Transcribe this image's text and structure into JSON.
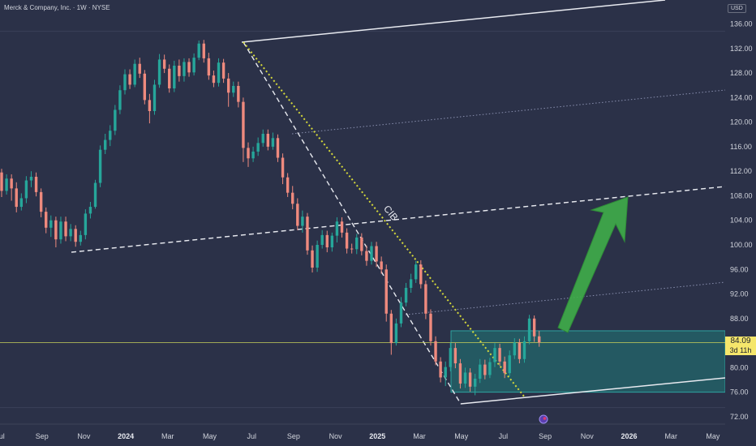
{
  "header": {
    "title": "Merck & Company, Inc. · 1W · NYSE",
    "currency": "USD"
  },
  "chart_data": {
    "type": "candlestick",
    "y_ticks": [
      "136.00",
      "132.00",
      "128.00",
      "124.00",
      "120.00",
      "116.00",
      "112.00",
      "108.00",
      "104.00",
      "100.00",
      "96.00",
      "92.00",
      "88.00",
      "84.00",
      "80.00",
      "76.00",
      "72.00"
    ],
    "ylim": [
      70.8,
      139.9
    ],
    "x_ticks": [
      {
        "label": "Jul",
        "year": false
      },
      {
        "label": "Sep",
        "year": false
      },
      {
        "label": "Nov",
        "year": false
      },
      {
        "label": "2024",
        "year": true
      },
      {
        "label": "Mar",
        "year": false
      },
      {
        "label": "May",
        "year": false
      },
      {
        "label": "Jul",
        "year": false
      },
      {
        "label": "Sep",
        "year": false
      },
      {
        "label": "Nov",
        "year": false
      },
      {
        "label": "2025",
        "year": true
      },
      {
        "label": "Mar",
        "year": false
      },
      {
        "label": "May",
        "year": false
      },
      {
        "label": "Jul",
        "year": false
      },
      {
        "label": "Sep",
        "year": false
      },
      {
        "label": "Nov",
        "year": false
      },
      {
        "label": "2026",
        "year": true
      },
      {
        "label": "Mar",
        "year": false
      },
      {
        "label": "May",
        "year": false
      }
    ],
    "last_price": "84.09",
    "countdown": "3d 11h",
    "annotation": "CIB",
    "colors": {
      "up": "#26a69a",
      "down": "#ef8a7e",
      "zone": "#1f7a78",
      "arrow": "#3fae49",
      "last_price": "#f5e66b"
    },
    "candles": [
      [
        111.8,
        108.8,
        112.4,
        107.8
      ],
      [
        108.8,
        110.8,
        111.5,
        108.2
      ],
      [
        110.8,
        109.2,
        111.5,
        107.2
      ],
      [
        109.2,
        106.2,
        110.2,
        105.3
      ],
      [
        106.2,
        107.6,
        108.4,
        105.6
      ],
      [
        107.6,
        110.5,
        111.2,
        106.8
      ],
      [
        110.5,
        111.1,
        112.0,
        109.4
      ],
      [
        111.1,
        108.6,
        111.8,
        107.9
      ],
      [
        108.6,
        105.4,
        109.2,
        104.5
      ],
      [
        105.4,
        102.8,
        106.1,
        101.9
      ],
      [
        102.8,
        104.0,
        104.8,
        101.3
      ],
      [
        104.0,
        100.9,
        104.6,
        99.6
      ],
      [
        100.9,
        103.8,
        104.6,
        100.2
      ],
      [
        103.8,
        101.4,
        104.6,
        100.6
      ],
      [
        101.4,
        102.6,
        103.4,
        100.6
      ],
      [
        102.6,
        100.5,
        103.2,
        99.7
      ],
      [
        100.5,
        101.6,
        102.3,
        99.9
      ],
      [
        101.6,
        105.1,
        105.8,
        100.9
      ],
      [
        105.1,
        106.2,
        107.0,
        104.3
      ],
      [
        106.2,
        110.1,
        110.6,
        105.9
      ],
      [
        110.1,
        115.5,
        116.2,
        109.4
      ],
      [
        115.5,
        117.1,
        118.1,
        114.8
      ],
      [
        117.1,
        118.6,
        119.5,
        116.1
      ],
      [
        118.6,
        122.0,
        122.8,
        117.9
      ],
      [
        122.0,
        125.2,
        126.0,
        121.3
      ],
      [
        125.2,
        127.8,
        128.6,
        124.5
      ],
      [
        127.8,
        126.1,
        128.6,
        125.4
      ],
      [
        126.1,
        129.5,
        130.2,
        125.7
      ],
      [
        129.5,
        127.9,
        130.5,
        127.2
      ],
      [
        127.9,
        123.6,
        128.5,
        122.9
      ],
      [
        123.6,
        121.8,
        124.6,
        119.8
      ],
      [
        121.8,
        126.1,
        126.9,
        121.2
      ],
      [
        126.1,
        130.2,
        131.1,
        125.6
      ],
      [
        130.2,
        128.7,
        131.0,
        128.0
      ],
      [
        128.7,
        125.5,
        129.4,
        124.8
      ],
      [
        125.5,
        129.2,
        130.0,
        124.9
      ],
      [
        129.2,
        127.5,
        130.2,
        126.6
      ],
      [
        127.5,
        129.8,
        130.4,
        126.6
      ],
      [
        129.8,
        128.1,
        130.4,
        127.4
      ],
      [
        128.1,
        130.5,
        131.2,
        127.6
      ],
      [
        130.5,
        132.8,
        133.3,
        130.1
      ],
      [
        132.8,
        130.4,
        133.4,
        129.7
      ],
      [
        130.4,
        127.6,
        131.3,
        126.9
      ],
      [
        127.6,
        126.4,
        128.4,
        125.7
      ],
      [
        126.4,
        129.7,
        130.4,
        125.8
      ],
      [
        129.7,
        127.1,
        130.3,
        126.4
      ],
      [
        127.1,
        124.8,
        128.0,
        122.5
      ],
      [
        124.8,
        125.9,
        126.6,
        124.1
      ],
      [
        125.9,
        123.3,
        126.6,
        122.4
      ],
      [
        123.3,
        115.8,
        124.0,
        113.5
      ],
      [
        115.8,
        114.1,
        116.7,
        112.7
      ],
      [
        114.1,
        115.2,
        116.0,
        113.5
      ],
      [
        115.2,
        116.6,
        117.5,
        114.5
      ],
      [
        116.6,
        118.1,
        118.8,
        116.0
      ],
      [
        118.1,
        116.0,
        118.8,
        115.4
      ],
      [
        116.0,
        117.4,
        118.3,
        115.5
      ],
      [
        117.4,
        114.2,
        118.0,
        113.5
      ],
      [
        114.2,
        111.0,
        114.9,
        109.9
      ],
      [
        111.0,
        108.5,
        111.7,
        107.8
      ],
      [
        108.5,
        106.7,
        109.6,
        105.8
      ],
      [
        106.7,
        103.1,
        107.6,
        102.4
      ],
      [
        103.1,
        104.6,
        105.6,
        102.0
      ],
      [
        104.6,
        99.1,
        105.2,
        98.4
      ],
      [
        99.1,
        96.3,
        99.9,
        95.5
      ],
      [
        96.3,
        100.0,
        100.7,
        95.6
      ],
      [
        100.0,
        101.6,
        102.4,
        99.4
      ],
      [
        101.6,
        99.6,
        102.3,
        98.8
      ],
      [
        99.6,
        101.5,
        102.0,
        98.9
      ],
      [
        101.5,
        103.8,
        104.5,
        100.4
      ],
      [
        103.8,
        102.0,
        104.5,
        101.2
      ],
      [
        102.0,
        99.4,
        102.7,
        98.6
      ],
      [
        99.4,
        99.3,
        100.2,
        98.6
      ],
      [
        99.3,
        101.2,
        101.8,
        98.5
      ],
      [
        101.2,
        99.0,
        101.9,
        98.3
      ],
      [
        99.0,
        97.4,
        99.9,
        96.6
      ],
      [
        97.4,
        99.8,
        100.5,
        96.8
      ],
      [
        99.8,
        97.3,
        100.5,
        96.4
      ],
      [
        97.3,
        96.0,
        98.1,
        95.3
      ],
      [
        96.0,
        88.8,
        96.8,
        87.5
      ],
      [
        88.8,
        84.0,
        89.4,
        82.1
      ],
      [
        84.0,
        87.2,
        88.0,
        83.6
      ],
      [
        87.2,
        90.6,
        91.5,
        86.6
      ],
      [
        90.6,
        93.0,
        93.8,
        90.0
      ],
      [
        93.0,
        94.4,
        95.3,
        92.2
      ],
      [
        94.4,
        96.8,
        97.4,
        93.8
      ],
      [
        96.8,
        93.6,
        97.5,
        92.9
      ],
      [
        93.6,
        88.8,
        94.2,
        87.9
      ],
      [
        88.8,
        84.3,
        89.5,
        83.6
      ],
      [
        84.3,
        81.0,
        85.1,
        80.4
      ],
      [
        81.0,
        78.4,
        81.7,
        77.6
      ],
      [
        78.4,
        80.1,
        81.0,
        77.0
      ],
      [
        80.1,
        83.2,
        84.1,
        79.4
      ],
      [
        83.2,
        80.7,
        84.0,
        79.9
      ],
      [
        80.7,
        77.4,
        81.4,
        76.6
      ],
      [
        77.4,
        79.2,
        80.0,
        76.7
      ],
      [
        79.2,
        76.9,
        79.9,
        76.1
      ],
      [
        76.9,
        78.2,
        79.0,
        75.5
      ],
      [
        78.2,
        80.5,
        81.4,
        77.5
      ],
      [
        80.5,
        78.8,
        81.3,
        78.1
      ],
      [
        78.8,
        80.9,
        81.6,
        78.3
      ],
      [
        80.9,
        83.2,
        84.0,
        80.1
      ],
      [
        83.2,
        81.0,
        83.9,
        80.3
      ],
      [
        81.0,
        79.1,
        81.8,
        78.3
      ],
      [
        79.1,
        82.0,
        82.8,
        78.6
      ],
      [
        82.0,
        84.1,
        84.8,
        81.4
      ],
      [
        84.1,
        81.4,
        84.7,
        80.7
      ],
      [
        81.4,
        84.3,
        85.1,
        80.8
      ],
      [
        84.3,
        88.0,
        88.6,
        83.8
      ],
      [
        88.0,
        85.1,
        88.5,
        84.2
      ],
      [
        85.1,
        84.1,
        86.0,
        83.4
      ]
    ]
  }
}
